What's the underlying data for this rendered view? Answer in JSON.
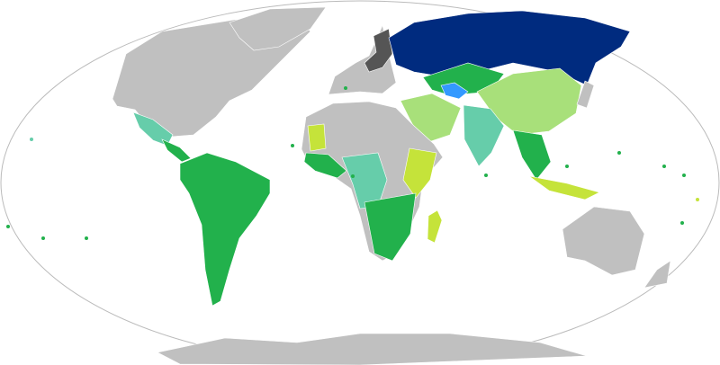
{
  "map": {
    "projection": "world-robinson-like",
    "colors": {
      "ocean": "#ffffff",
      "outline": "#bbbbbb",
      "no_data": "#c0c0c0",
      "category_navy": "#002b7f",
      "category_green": "#22b14c",
      "category_light_green": "#a8e07a",
      "category_yellow_green": "#c5e33a",
      "category_teal": "#66cdaa",
      "category_dark_gray": "#555555",
      "category_blue": "#3399ff"
    },
    "regions": [
      {
        "name": "north-america",
        "fill": "no_data"
      },
      {
        "name": "greenland",
        "fill": "no_data"
      },
      {
        "name": "mexico",
        "fill": "category_teal"
      },
      {
        "name": "central-america",
        "fill": "category_green"
      },
      {
        "name": "south-america",
        "fill": "category_green"
      },
      {
        "name": "europe",
        "fill": "no_data"
      },
      {
        "name": "baltic-states",
        "fill": "category_dark_gray"
      },
      {
        "name": "russia",
        "fill": "category_navy"
      },
      {
        "name": "kazakhstan",
        "fill": "category_green"
      },
      {
        "name": "caspian-region",
        "fill": "category_blue"
      },
      {
        "name": "china",
        "fill": "category_light_green"
      },
      {
        "name": "middle-east",
        "fill": "category_light_green"
      },
      {
        "name": "india",
        "fill": "category_teal"
      },
      {
        "name": "southeast-asia",
        "fill": "category_green"
      },
      {
        "name": "indonesia",
        "fill": "category_yellow_green"
      },
      {
        "name": "africa",
        "fill": "no_data"
      },
      {
        "name": "west-africa",
        "fill": "category_green"
      },
      {
        "name": "mauritania",
        "fill": "category_yellow_green"
      },
      {
        "name": "central-africa",
        "fill": "category_teal"
      },
      {
        "name": "east-africa",
        "fill": "category_yellow_green"
      },
      {
        "name": "southern-africa",
        "fill": "category_green"
      },
      {
        "name": "madagascar",
        "fill": "category_yellow_green"
      },
      {
        "name": "australia",
        "fill": "no_data"
      },
      {
        "name": "new-zealand",
        "fill": "no_data"
      },
      {
        "name": "japan",
        "fill": "no_data"
      },
      {
        "name": "antarctica",
        "fill": "no_data"
      }
    ]
  }
}
